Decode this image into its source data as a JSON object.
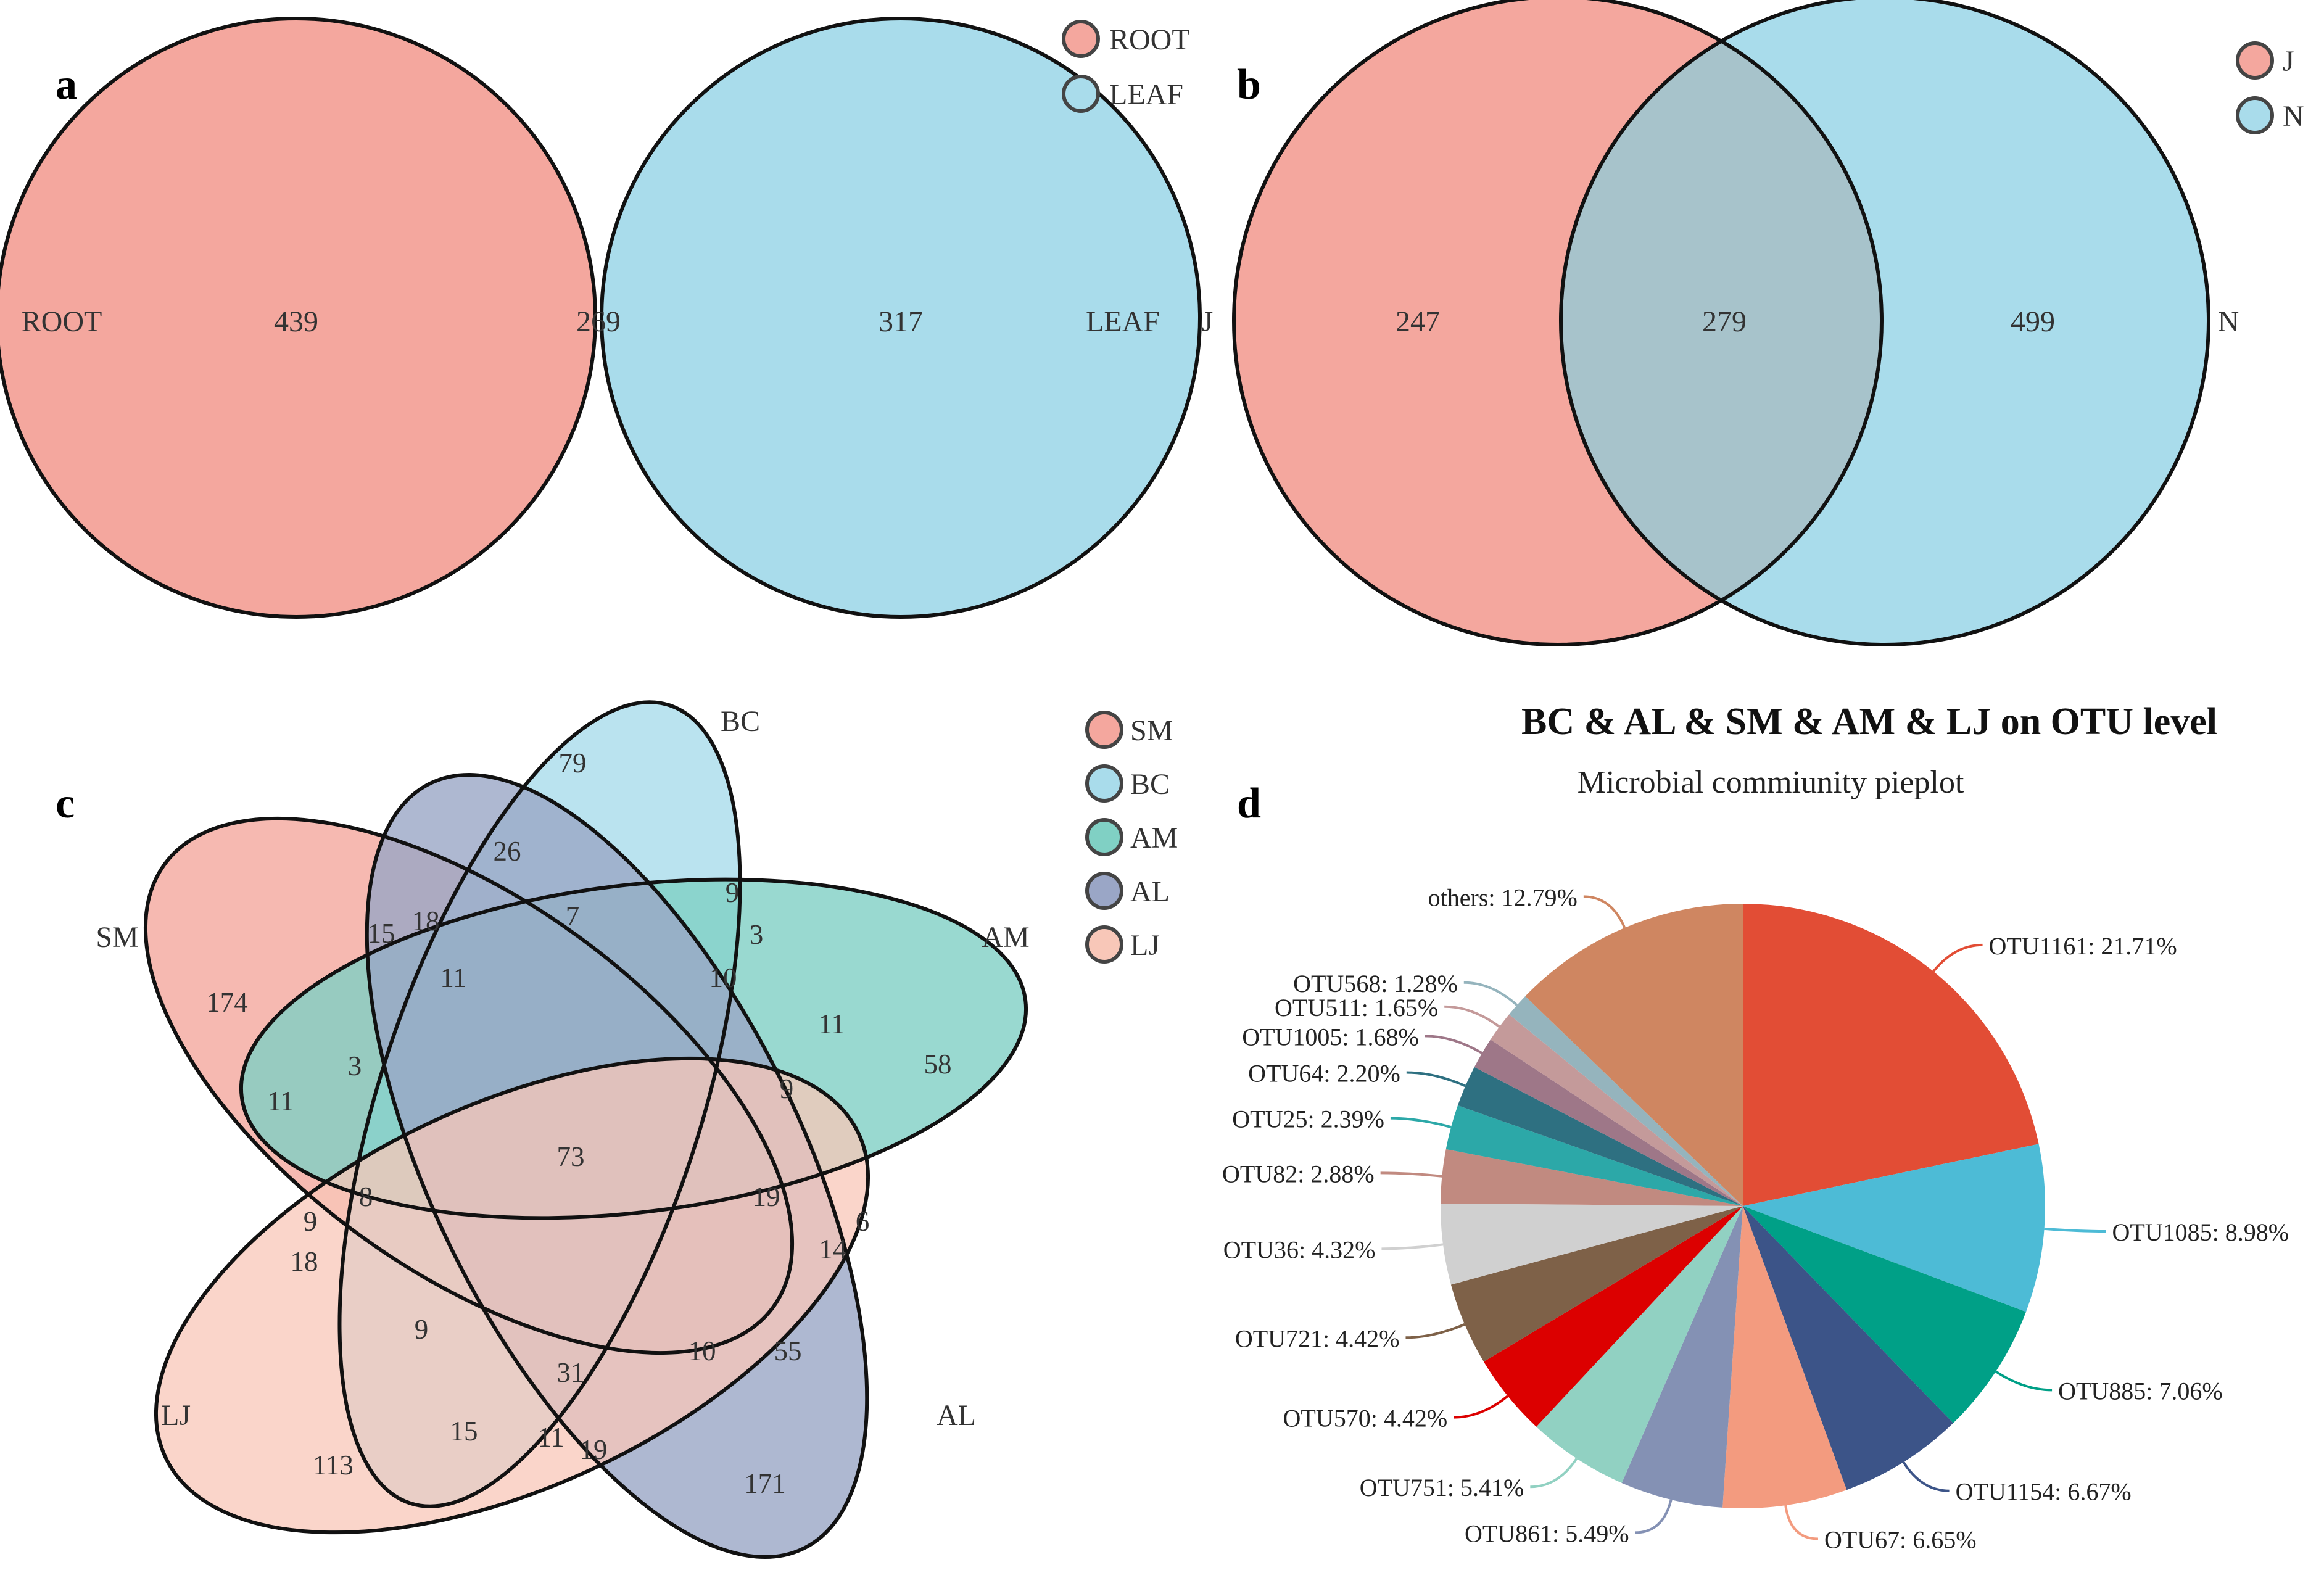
{
  "panels": {
    "a": {
      "label": "a"
    },
    "b": {
      "label": "b"
    },
    "c": {
      "label": "c"
    },
    "d": {
      "label": "d"
    }
  },
  "chart_data": [
    {
      "type": "venn",
      "panel": "a",
      "sets": [
        {
          "name": "ROOT",
          "color": "#F4A79E"
        },
        {
          "name": "LEAF",
          "color": "#A9DCEB"
        }
      ],
      "legend": [
        "ROOT",
        "LEAF"
      ],
      "legend_position": "top-right",
      "regions": [
        {
          "sets": [
            "ROOT"
          ],
          "value": 439
        },
        {
          "sets": [
            "ROOT",
            "LEAF"
          ],
          "value": 269
        },
        {
          "sets": [
            "LEAF"
          ],
          "value": 317
        }
      ]
    },
    {
      "type": "venn",
      "panel": "b",
      "sets": [
        {
          "name": "J",
          "color": "#F4A79E"
        },
        {
          "name": "N",
          "color": "#A9DCEB"
        }
      ],
      "legend": [
        "J",
        "N"
      ],
      "legend_position": "top-right",
      "regions": [
        {
          "sets": [
            "J"
          ],
          "value": 247
        },
        {
          "sets": [
            "J",
            "N"
          ],
          "value": 279
        },
        {
          "sets": [
            "N"
          ],
          "value": 499
        }
      ]
    },
    {
      "type": "venn",
      "panel": "c",
      "sets": [
        {
          "name": "SM",
          "color": "#F4A79E"
        },
        {
          "name": "BC",
          "color": "#A9DCEB"
        },
        {
          "name": "AM",
          "color": "#80D0C4"
        },
        {
          "name": "AL",
          "color": "#9AA6C6"
        },
        {
          "name": "LJ",
          "color": "#F8C7B8"
        }
      ],
      "legend": [
        "SM",
        "BC",
        "AM",
        "AL",
        "LJ"
      ],
      "legend_position": "top-right",
      "region_values": [
        79,
        26,
        9,
        7,
        3,
        15,
        18,
        11,
        10,
        11,
        58,
        174,
        3,
        11,
        9,
        73,
        6,
        19,
        14,
        8,
        9,
        18,
        9,
        31,
        10,
        55,
        15,
        11,
        19,
        113,
        171
      ]
    },
    {
      "type": "pie",
      "panel": "d",
      "title": "BC & AL & SM & AM & LJ on OTU level",
      "subtitle": "Microbial commiunity pieplot",
      "slices": [
        {
          "name": "OTU1161",
          "value": 21.71,
          "label": "OTU1161: 21.71%",
          "color": "#E24D35"
        },
        {
          "name": "OTU1085",
          "value": 8.98,
          "label": "OTU1085: 8.98%",
          "color": "#4DBBD6"
        },
        {
          "name": "OTU885",
          "value": 7.06,
          "label": "OTU885: 7.06%",
          "color": "#00A087"
        },
        {
          "name": "OTU1154",
          "value": 6.67,
          "label": "OTU1154: 6.67%",
          "color": "#3C5488"
        },
        {
          "name": "OTU67",
          "value": 6.65,
          "label": "OTU67: 6.65%",
          "color": "#F39B7F"
        },
        {
          "name": "OTU861",
          "value": 5.49,
          "label": "OTU861: 5.49%",
          "color": "#8491B4"
        },
        {
          "name": "OTU751",
          "value": 5.41,
          "label": "OTU751: 5.41%",
          "color": "#91D1C2"
        },
        {
          "name": "OTU570",
          "value": 4.42,
          "label": "OTU570: 4.42%",
          "color": "#DC0000"
        },
        {
          "name": "OTU721",
          "value": 4.42,
          "label": "OTU721: 4.42%",
          "color": "#7E6148"
        },
        {
          "name": "OTU36",
          "value": 4.32,
          "label": "OTU36: 4.32%",
          "color": "#D0D0D0"
        },
        {
          "name": "OTU82",
          "value": 2.88,
          "label": "OTU82: 2.88%",
          "color": "#C18A80"
        },
        {
          "name": "OTU25",
          "value": 2.39,
          "label": "OTU25: 2.39%",
          "color": "#2CA8A8"
        },
        {
          "name": "OTU64",
          "value": 2.2,
          "label": "OTU64: 2.20%",
          "color": "#2E7081"
        },
        {
          "name": "OTU1005",
          "value": 1.68,
          "label": "OTU1005: 1.68%",
          "color": "#9E7788"
        },
        {
          "name": "OTU511",
          "value": 1.65,
          "label": "OTU511: 1.65%",
          "color": "#C49A9A"
        },
        {
          "name": "OTU568",
          "value": 1.28,
          "label": "OTU568: 1.28%",
          "color": "#95B4BD"
        },
        {
          "name": "others",
          "value": 12.79,
          "label": "others: 12.79%",
          "color": "#CF8661"
        }
      ]
    }
  ]
}
